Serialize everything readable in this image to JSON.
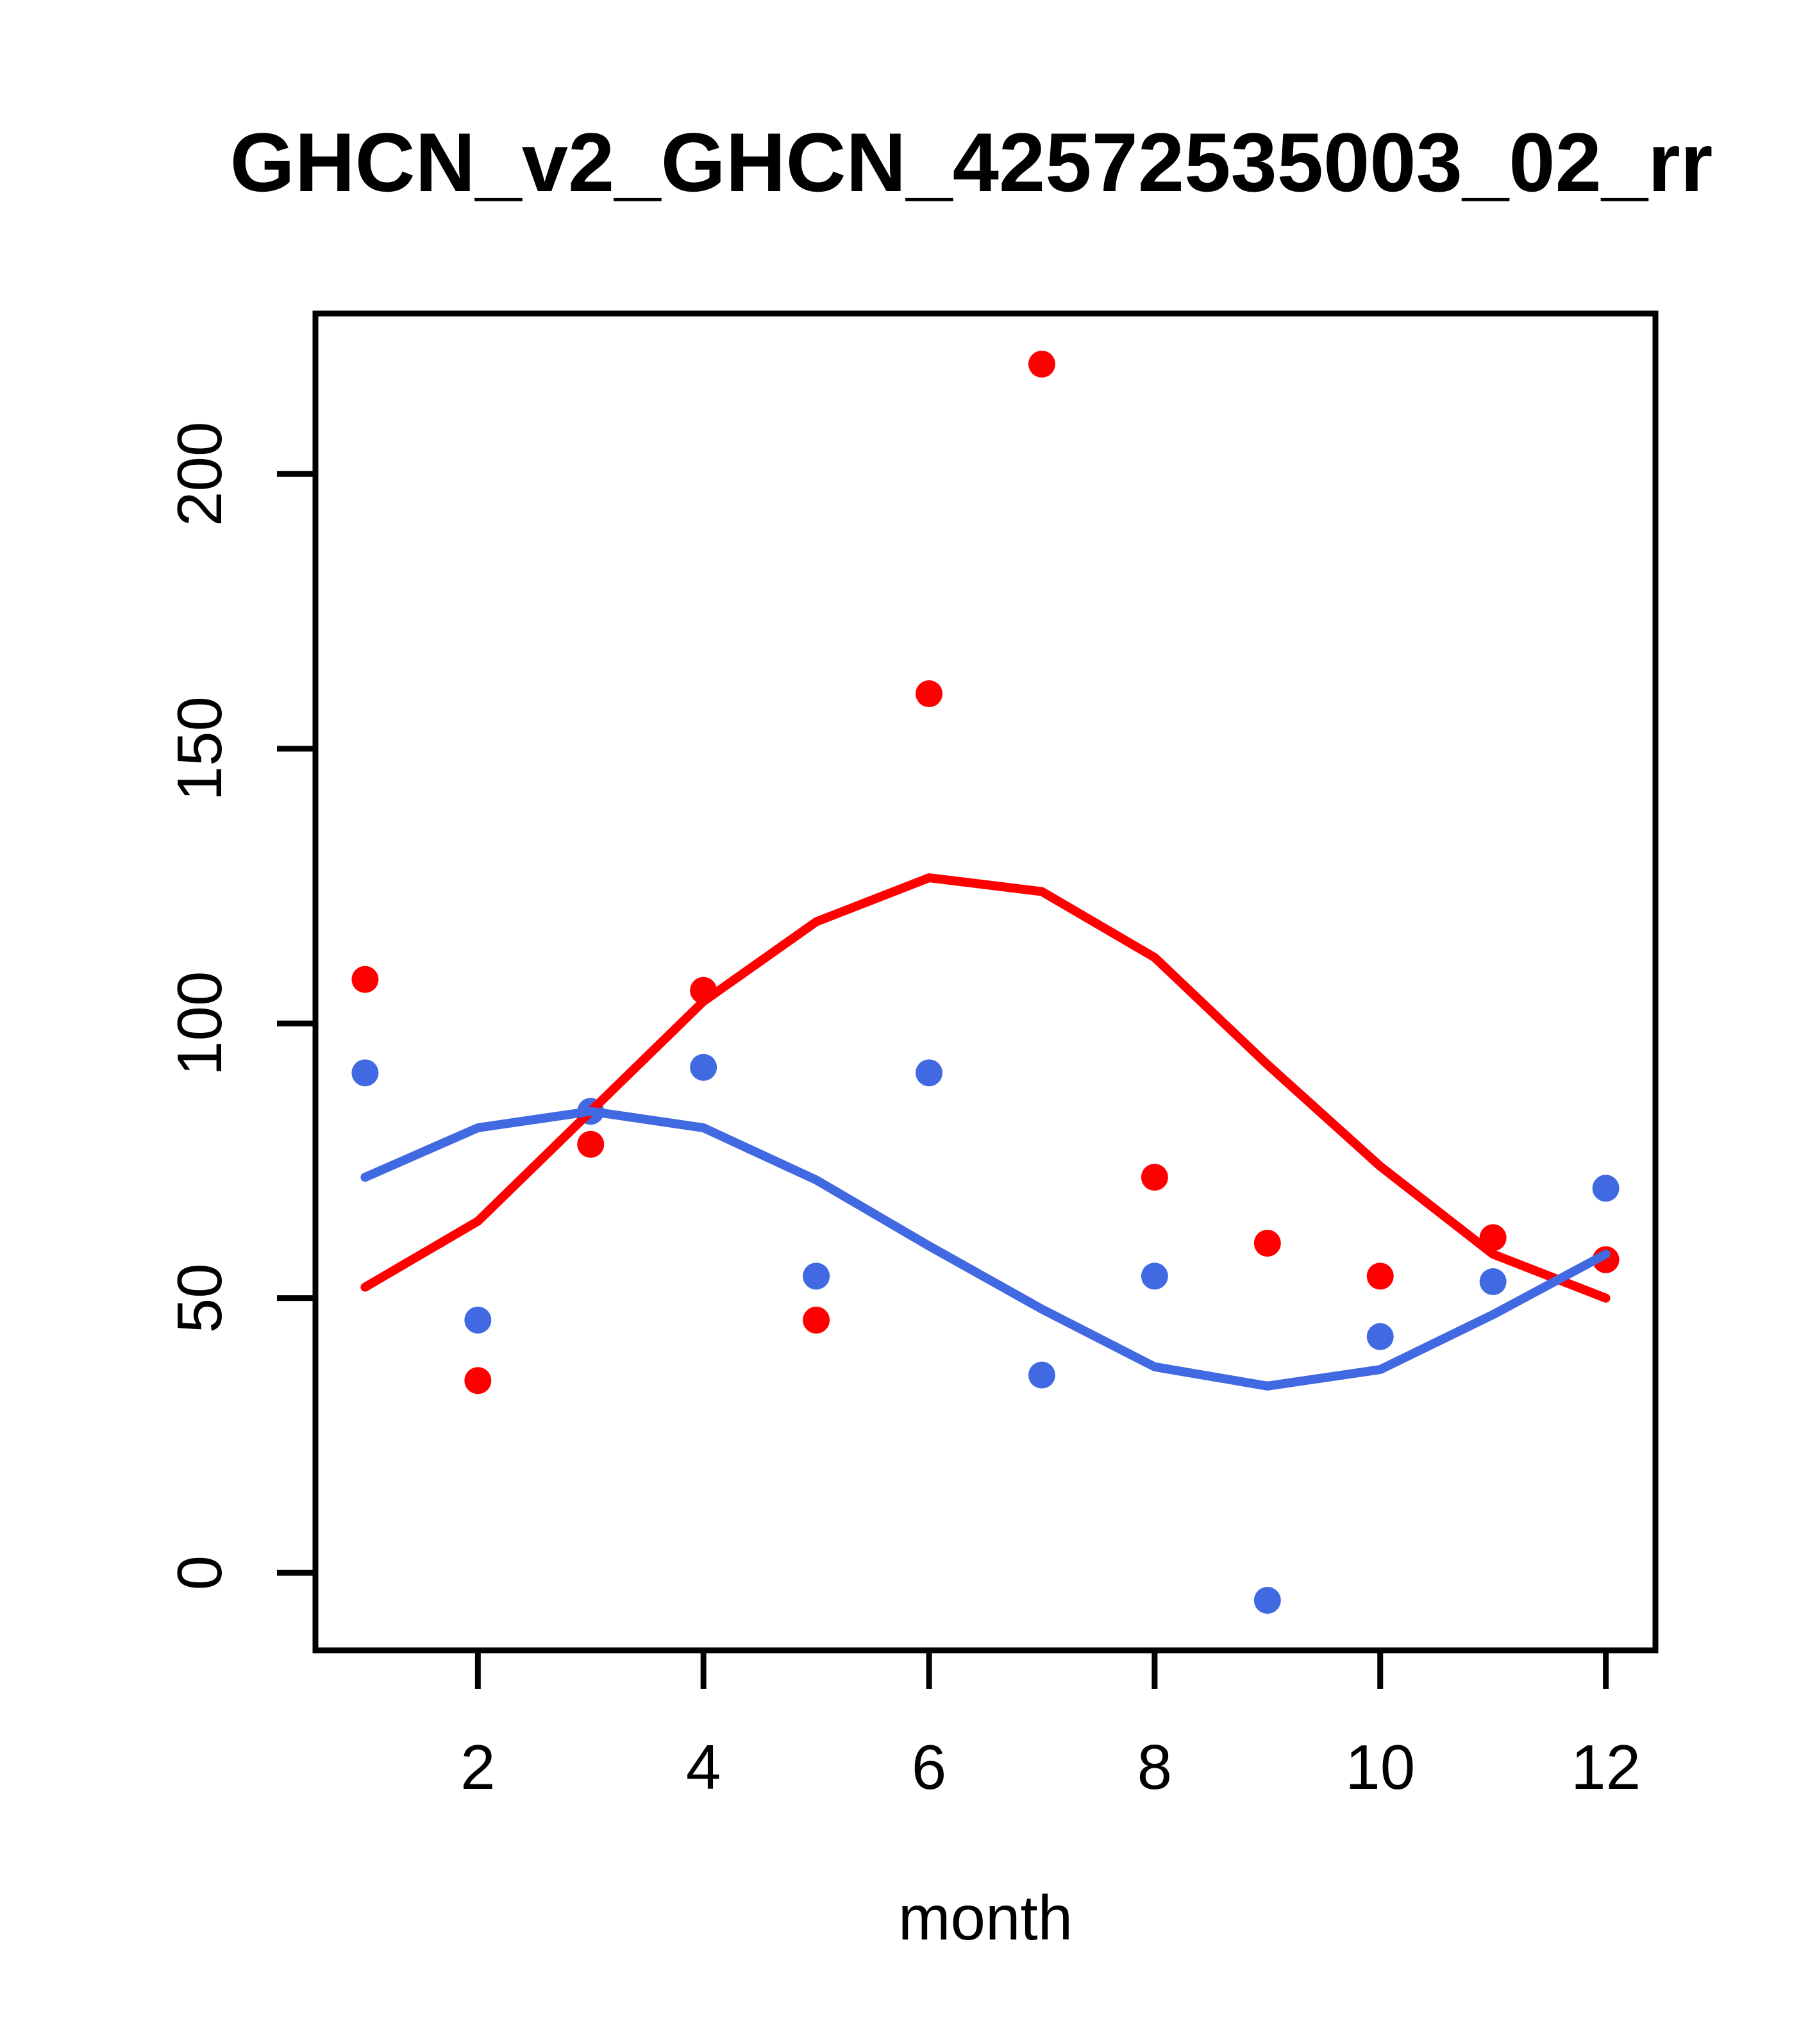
{
  "title": "GHCN_v2_GHCN_42572535003_02_rr",
  "chart_data": {
    "type": "scatter",
    "title": "GHCN_v2_GHCN_42572535003_02_rr",
    "xlabel": "month",
    "ylabel": "",
    "x": [
      1,
      2,
      3,
      4,
      5,
      6,
      7,
      8,
      9,
      10,
      11,
      12
    ],
    "series": [
      {
        "name": "red-points",
        "kind": "points",
        "color": "#FF0000",
        "values": [
          108,
          35,
          78,
          106,
          46,
          160,
          220,
          72,
          60,
          54,
          61,
          57
        ]
      },
      {
        "name": "blue-points",
        "kind": "points",
        "color": "#4169E1",
        "values": [
          91,
          46,
          84,
          92,
          54,
          91,
          36,
          54,
          -5,
          43,
          53,
          70
        ]
      },
      {
        "name": "red-smooth",
        "kind": "line",
        "color": "#FF0000",
        "values": [
          52,
          64,
          84,
          104,
          118.5,
          126.5,
          124,
          112,
          92.5,
          74,
          58,
          50
        ]
      },
      {
        "name": "blue-smooth",
        "kind": "line",
        "color": "#4169E1",
        "values": [
          72,
          81,
          84,
          81,
          71.5,
          59.5,
          48,
          37.5,
          34,
          37,
          47,
          58
        ]
      }
    ],
    "x_ticks": [
      2,
      4,
      6,
      8,
      10,
      12
    ],
    "y_ticks": [
      0,
      50,
      100,
      150,
      200
    ],
    "xlim": [
      0.56,
      12.44
    ],
    "ylim": [
      -14.1,
      229.2
    ],
    "grid": false,
    "legend": "none",
    "colors": {
      "red": "#FF0000",
      "blue": "#4169E1",
      "axis": "#000000",
      "background": "#FFFFFF"
    }
  }
}
